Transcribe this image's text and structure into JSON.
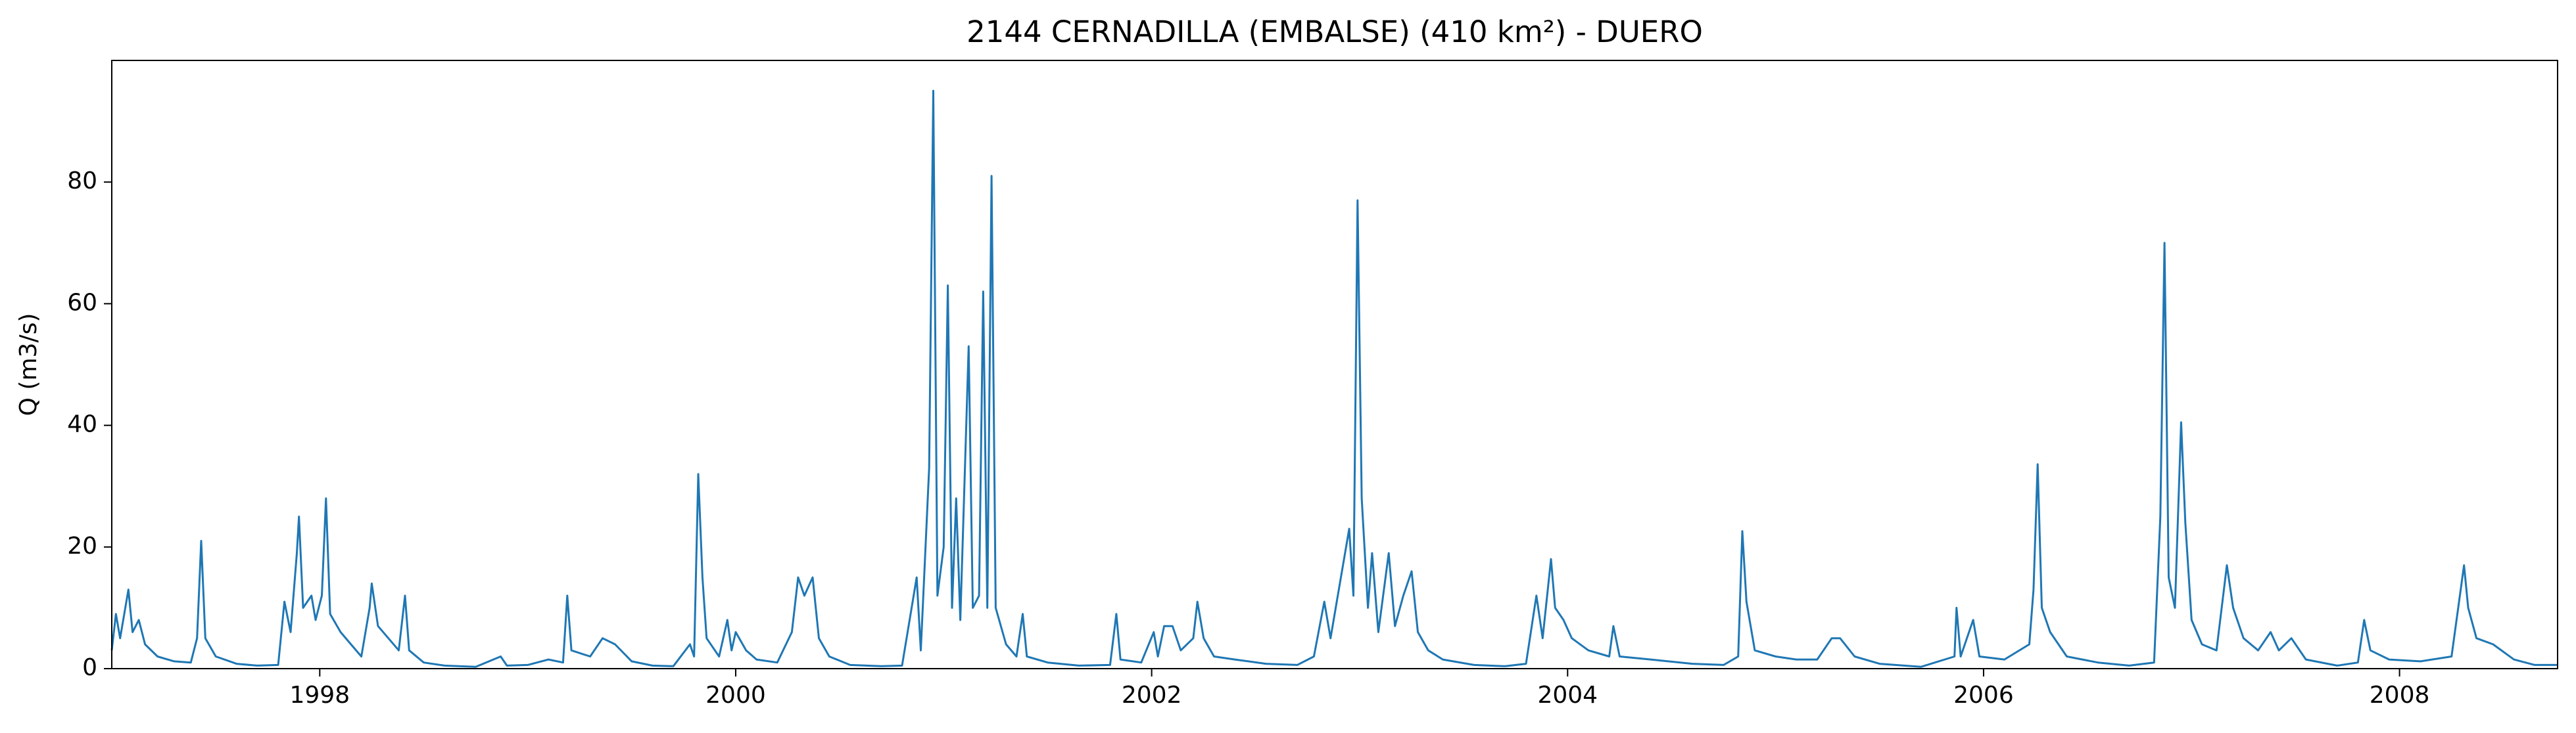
{
  "chart_data": {
    "type": "line",
    "title": "2144 CERNADILLA (EMBALSE) (410 km²) - DUERO",
    "ylabel": "Q (m3/s)",
    "color": "#1f77b4",
    "xlim": [
      1997.0,
      2008.76
    ],
    "xticks": [
      1998,
      2000,
      2002,
      2004,
      2006,
      2008
    ],
    "ylim": [
      0,
      100
    ],
    "yticks": [
      0,
      20,
      40,
      60,
      80
    ],
    "grid": false,
    "x": [
      1997.0,
      1997.02,
      1997.04,
      1997.08,
      1997.1,
      1997.13,
      1997.16,
      1997.22,
      1997.3,
      1997.38,
      1997.41,
      1997.43,
      1997.45,
      1997.5,
      1997.6,
      1997.7,
      1997.8,
      1997.83,
      1997.86,
      1997.89,
      1997.9,
      1997.92,
      1997.96,
      1997.98,
      1998.01,
      1998.03,
      1998.05,
      1998.1,
      1998.15,
      1998.2,
      1998.24,
      1998.25,
      1998.28,
      1998.33,
      1998.38,
      1998.41,
      1998.43,
      1998.5,
      1998.6,
      1998.75,
      1998.87,
      1998.9,
      1999.0,
      1999.1,
      1999.17,
      1999.19,
      1999.21,
      1999.3,
      1999.36,
      1999.42,
      1999.5,
      1999.6,
      1999.7,
      1999.78,
      1999.8,
      1999.82,
      1999.84,
      1999.86,
      1999.92,
      1999.96,
      1999.98,
      2000.0,
      2000.05,
      2000.1,
      2000.2,
      2000.27,
      2000.3,
      2000.33,
      2000.37,
      2000.4,
      2000.45,
      2000.55,
      2000.7,
      2000.8,
      2000.87,
      2000.89,
      2000.93,
      2000.95,
      2000.97,
      2001.0,
      2001.02,
      2001.04,
      2001.06,
      2001.08,
      2001.12,
      2001.14,
      2001.17,
      2001.19,
      2001.21,
      2001.23,
      2001.25,
      2001.3,
      2001.35,
      2001.38,
      2001.4,
      2001.5,
      2001.65,
      2001.8,
      2001.83,
      2001.85,
      2001.95,
      2002.01,
      2002.03,
      2002.06,
      2002.1,
      2002.14,
      2002.2,
      2002.22,
      2002.25,
      2002.3,
      2002.4,
      2002.55,
      2002.7,
      2002.78,
      2002.83,
      2002.86,
      2002.9,
      2002.95,
      2002.97,
      2002.99,
      2003.01,
      2003.04,
      2003.06,
      2003.09,
      2003.14,
      2003.17,
      2003.21,
      2003.25,
      2003.28,
      2003.33,
      2003.4,
      2003.55,
      2003.7,
      2003.8,
      2003.85,
      2003.88,
      2003.92,
      2003.94,
      2003.98,
      2004.02,
      2004.1,
      2004.2,
      2004.22,
      2004.25,
      2004.4,
      2004.6,
      2004.75,
      2004.82,
      2004.84,
      2004.86,
      2004.9,
      2005.0,
      2005.1,
      2005.2,
      2005.27,
      2005.31,
      2005.38,
      2005.5,
      2005.7,
      2005.86,
      2005.87,
      2005.89,
      2005.95,
      2005.98,
      2006.1,
      2006.22,
      2006.24,
      2006.26,
      2006.28,
      2006.32,
      2006.4,
      2006.55,
      2006.7,
      2006.82,
      2006.85,
      2006.87,
      2006.89,
      2006.92,
      2006.95,
      2006.97,
      2007.0,
      2007.05,
      2007.12,
      2007.17,
      2007.2,
      2007.25,
      2007.32,
      2007.38,
      2007.42,
      2007.48,
      2007.55,
      2007.7,
      2007.8,
      2007.83,
      2007.86,
      2007.95,
      2008.1,
      2008.25,
      2008.31,
      2008.33,
      2008.37,
      2008.45,
      2008.55,
      2008.65,
      2008.76
    ],
    "values": [
      3,
      9,
      5,
      13,
      6,
      8,
      4,
      2,
      1.2,
      1,
      5,
      21,
      5,
      2,
      0.8,
      0.5,
      0.6,
      11,
      6,
      19,
      25,
      10,
      12,
      8,
      12,
      28,
      9,
      6,
      4,
      2,
      10,
      14,
      7,
      5,
      3,
      12,
      3,
      1,
      0.5,
      0.3,
      2,
      0.5,
      0.6,
      1.5,
      1,
      12,
      3,
      2,
      5,
      4,
      1.2,
      0.5,
      0.4,
      4,
      2,
      32,
      15,
      5,
      2,
      8,
      3,
      6,
      3,
      1.5,
      1,
      6,
      15,
      12,
      15,
      5,
      2,
      0.6,
      0.4,
      0.5,
      15,
      3,
      33,
      95,
      12,
      20,
      63,
      10,
      28,
      8,
      53,
      10,
      12,
      62,
      10,
      81,
      10,
      4,
      2,
      9,
      2,
      1,
      0.5,
      0.6,
      9,
      1.5,
      1,
      6,
      2,
      7,
      7,
      3,
      5,
      11,
      5,
      2,
      1.5,
      0.8,
      0.6,
      2,
      11,
      5,
      13,
      23,
      12,
      77,
      28,
      10,
      19,
      6,
      19,
      7,
      12,
      16,
      6,
      3,
      1.5,
      0.6,
      0.4,
      0.8,
      12,
      5,
      18,
      10,
      8,
      5,
      3,
      2,
      7,
      2,
      1.5,
      0.8,
      0.6,
      2,
      22.6,
      11,
      3,
      2,
      1.5,
      1.5,
      5,
      5,
      2,
      0.8,
      0.3,
      2,
      10,
      2,
      8,
      2,
      1.5,
      4,
      13,
      33.6,
      10,
      6,
      2,
      1,
      0.5,
      1,
      25,
      70,
      15,
      10,
      40.5,
      24,
      8,
      4,
      3,
      17,
      10,
      5,
      3,
      6,
      3,
      5,
      1.5,
      0.5,
      1,
      8,
      3,
      1.5,
      1.2,
      2,
      17,
      10,
      5,
      4,
      1.5,
      0.6,
      0.6
    ]
  }
}
